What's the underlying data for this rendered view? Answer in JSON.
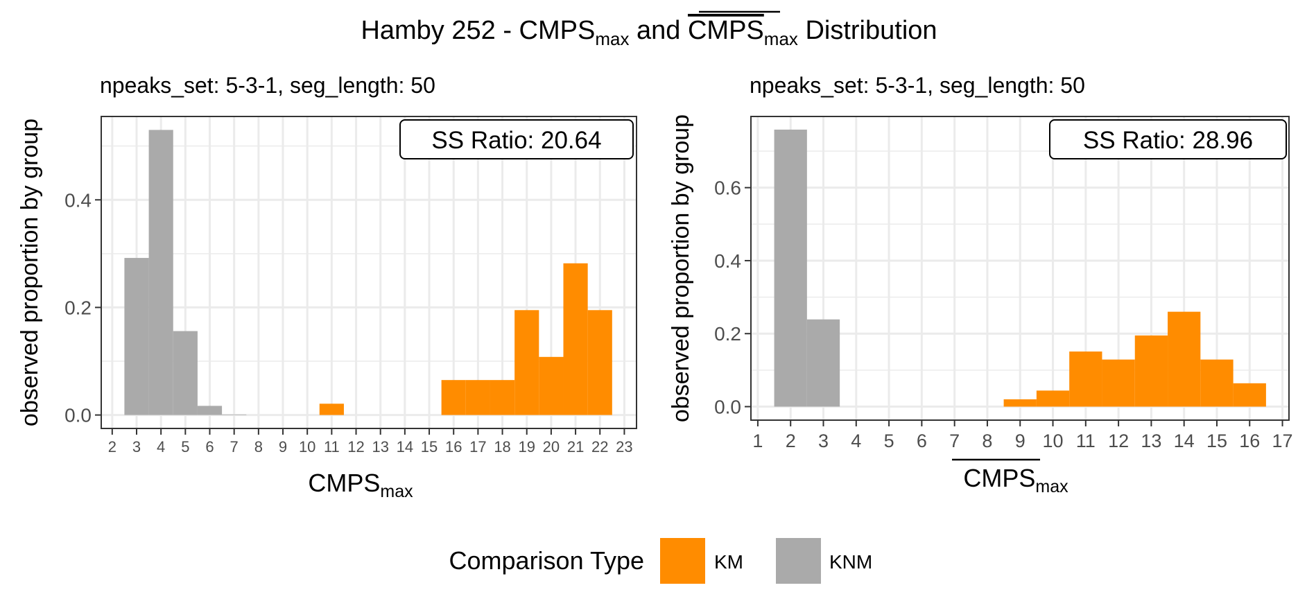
{
  "title": {
    "prefix": "Hamby 252 - ",
    "term1": "CMPS",
    "sub1": "max",
    "mid": " and ",
    "term2": "CMPS",
    "sub2": "max",
    "suffix": " Distribution"
  },
  "legend": {
    "title": "Comparison Type",
    "items": [
      {
        "label": "KM",
        "color": "#ff8c00"
      },
      {
        "label": "KNM",
        "color": "#aaaaaa"
      }
    ],
    "placement": "bottom"
  },
  "chart_data": [
    {
      "type": "bar",
      "subtitle": "npeaks_set: 5-3-1, seg_length: 50",
      "annotation": "SS Ratio: 20.64",
      "ylabel": "observed proportion by group",
      "xlabel": {
        "main": "CMPS",
        "sub": "max",
        "overline": false
      },
      "xlim": [
        1.55,
        23.5
      ],
      "ylim": [
        -0.025,
        0.555
      ],
      "xticks": [
        2,
        3,
        4,
        5,
        6,
        7,
        8,
        9,
        10,
        11,
        12,
        13,
        14,
        15,
        16,
        17,
        18,
        19,
        20,
        21,
        22,
        23
      ],
      "yticks": [
        "0.0",
        "0.2",
        "0.4"
      ],
      "grid": true,
      "series": [
        {
          "name": "KNM",
          "color": "#aaaaaa",
          "x": [
            3,
            4,
            5,
            6,
            7
          ],
          "values": [
            0.292,
            0.53,
            0.156,
            0.017,
            0.001
          ]
        },
        {
          "name": "KM",
          "color": "#ff8c00",
          "x": [
            11,
            16,
            17,
            18,
            19,
            20,
            21,
            22
          ],
          "values": [
            0.021,
            0.065,
            0.065,
            0.065,
            0.195,
            0.108,
            0.282,
            0.195
          ]
        }
      ]
    },
    {
      "type": "bar",
      "subtitle": "npeaks_set: 5-3-1, seg_length: 50",
      "annotation": "SS Ratio: 28.96",
      "ylabel": "observed proportion by group",
      "xlabel": {
        "main": "CMPS",
        "sub": "max",
        "overline": true
      },
      "xlim": [
        0.79,
        17.2
      ],
      "ylim": [
        -0.037,
        0.795
      ],
      "xticks": [
        1,
        2,
        3,
        4,
        5,
        6,
        7,
        8,
        9,
        10,
        11,
        12,
        13,
        14,
        15,
        16,
        17
      ],
      "yticks": [
        "0.0",
        "0.2",
        "0.4",
        "0.6"
      ],
      "grid": true,
      "series": [
        {
          "name": "KNM",
          "color": "#aaaaaa",
          "x": [
            2,
            3
          ],
          "values": [
            0.759,
            0.239
          ]
        },
        {
          "name": "KM",
          "color": "#ff8c00",
          "x": [
            9,
            10,
            11,
            12,
            13,
            14,
            15,
            16
          ],
          "values": [
            0.02,
            0.044,
            0.151,
            0.129,
            0.195,
            0.26,
            0.129,
            0.064
          ]
        }
      ]
    }
  ]
}
